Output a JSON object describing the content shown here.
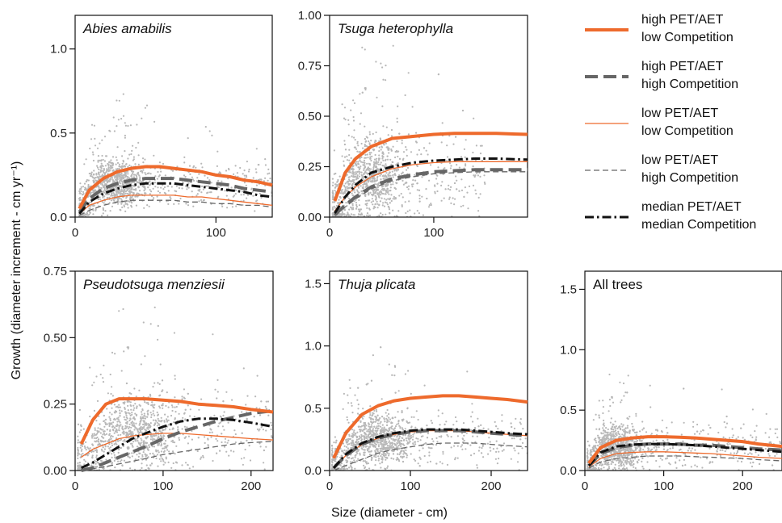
{
  "ylabel": "Growth (diameter increment - cm yr⁻¹)",
  "xlabel": "Size (diameter - cm)",
  "styles": {
    "high_low": {
      "color": "#ee6a2c",
      "width": 4,
      "dash": ""
    },
    "high_high": {
      "color": "#666666",
      "width": 4,
      "dash": "16,7"
    },
    "low_low": {
      "color": "#ee6a2c",
      "width": 1.3,
      "dash": ""
    },
    "low_high": {
      "color": "#666666",
      "width": 1.3,
      "dash": "7,4"
    },
    "median": {
      "color": "#111111",
      "width": 3,
      "dash": "11,4,2.5,4"
    },
    "scatter": "#b8b8b8"
  },
  "legend": [
    {
      "key": "high_low",
      "line1": "high PET/AET",
      "line2": "low Competition"
    },
    {
      "key": "high_high",
      "line1": "high PET/AET",
      "line2": "high Competition"
    },
    {
      "key": "low_low",
      "line1": "low PET/AET",
      "line2": "low Competition"
    },
    {
      "key": "low_high",
      "line1": "low PET/AET",
      "line2": "high Competition"
    },
    {
      "key": "median",
      "line1": "median PET/AET",
      "line2": "median Competition"
    }
  ],
  "chart_data": [
    {
      "type": "line",
      "title": "Abies amabilis",
      "italic": true,
      "xlim": [
        0,
        140
      ],
      "ylim": [
        0,
        1.2
      ],
      "xticks": [
        0,
        100
      ],
      "yticks": [
        0.0,
        0.5,
        1.0
      ],
      "ytick_labels": [
        "0.0",
        "0.5",
        "1.0"
      ],
      "scatter": {
        "xmax": 140,
        "mode": 28,
        "level": 0.2,
        "spread": 0.1
      },
      "x": [
        3,
        10,
        20,
        30,
        40,
        50,
        60,
        70,
        80,
        90,
        100,
        110,
        120,
        130,
        140
      ],
      "series": [
        {
          "key": "high_low",
          "values": [
            0.05,
            0.16,
            0.23,
            0.27,
            0.29,
            0.3,
            0.3,
            0.29,
            0.28,
            0.27,
            0.25,
            0.24,
            0.22,
            0.21,
            0.19
          ]
        },
        {
          "key": "high_high",
          "values": [
            0.03,
            0.11,
            0.17,
            0.2,
            0.22,
            0.23,
            0.23,
            0.23,
            0.22,
            0.21,
            0.2,
            0.19,
            0.17,
            0.16,
            0.15
          ]
        },
        {
          "key": "low_low",
          "values": [
            0.02,
            0.07,
            0.1,
            0.12,
            0.13,
            0.13,
            0.13,
            0.13,
            0.12,
            0.12,
            0.11,
            0.1,
            0.09,
            0.08,
            0.07
          ]
        },
        {
          "key": "low_high",
          "values": [
            0.01,
            0.04,
            0.07,
            0.09,
            0.1,
            0.1,
            0.1,
            0.1,
            0.09,
            0.09,
            0.08,
            0.08,
            0.07,
            0.07,
            0.06
          ]
        },
        {
          "key": "median",
          "values": [
            0.02,
            0.09,
            0.14,
            0.17,
            0.19,
            0.2,
            0.2,
            0.2,
            0.19,
            0.18,
            0.17,
            0.16,
            0.15,
            0.13,
            0.12
          ]
        }
      ]
    },
    {
      "type": "line",
      "title": "Tsuga heterophylla",
      "italic": true,
      "xlim": [
        0,
        190
      ],
      "ylim": [
        0,
        1.0
      ],
      "xticks": [
        0,
        100,
        200
      ],
      "yticks": [
        0.0,
        0.25,
        0.5,
        0.75,
        1.0
      ],
      "ytick_labels": [
        "0.00",
        "0.25",
        "0.50",
        "0.75",
        "1.00"
      ],
      "scatter": {
        "xmax": 150,
        "mode": 40,
        "level": 0.2,
        "spread": 0.14
      },
      "x": [
        5,
        15,
        25,
        40,
        60,
        80,
        100,
        120,
        140,
        160,
        190
      ],
      "series": [
        {
          "key": "high_low",
          "values": [
            0.08,
            0.22,
            0.29,
            0.35,
            0.39,
            0.4,
            0.41,
            0.415,
            0.415,
            0.415,
            0.41
          ]
        },
        {
          "key": "high_high",
          "values": [
            0.01,
            0.06,
            0.1,
            0.15,
            0.19,
            0.21,
            0.225,
            0.23,
            0.235,
            0.235,
            0.235
          ]
        },
        {
          "key": "low_low",
          "values": [
            0.03,
            0.1,
            0.15,
            0.2,
            0.24,
            0.26,
            0.27,
            0.275,
            0.275,
            0.275,
            0.275
          ]
        },
        {
          "key": "low_high",
          "values": [
            0.01,
            0.05,
            0.09,
            0.14,
            0.18,
            0.2,
            0.215,
            0.22,
            0.225,
            0.225,
            0.225
          ]
        },
        {
          "key": "median",
          "values": [
            0.02,
            0.1,
            0.16,
            0.22,
            0.25,
            0.27,
            0.28,
            0.285,
            0.29,
            0.29,
            0.285
          ]
        }
      ]
    },
    {
      "type": "line",
      "title": "Pseudotsuga menziesii",
      "italic": true,
      "xlim": [
        0,
        225
      ],
      "ylim": [
        0,
        0.75
      ],
      "xticks": [
        0,
        100,
        200
      ],
      "yticks": [
        0.0,
        0.25,
        0.5,
        0.75
      ],
      "ytick_labels": [
        "0.00",
        "0.25",
        "0.50",
        "0.75"
      ],
      "scatter": {
        "xmax": 225,
        "mode": 70,
        "level": 0.15,
        "spread": 0.1
      },
      "x": [
        7,
        20,
        35,
        50,
        65,
        80,
        100,
        120,
        140,
        160,
        180,
        200,
        225
      ],
      "series": [
        {
          "key": "high_low",
          "values": [
            0.1,
            0.19,
            0.25,
            0.27,
            0.27,
            0.27,
            0.265,
            0.26,
            0.25,
            0.245,
            0.24,
            0.23,
            0.22
          ]
        },
        {
          "key": "high_high",
          "values": [
            0.0,
            0.01,
            0.03,
            0.05,
            0.07,
            0.09,
            0.12,
            0.145,
            0.165,
            0.185,
            0.2,
            0.215,
            0.225
          ]
        },
        {
          "key": "low_low",
          "values": [
            0.05,
            0.08,
            0.1,
            0.12,
            0.13,
            0.135,
            0.14,
            0.14,
            0.135,
            0.13,
            0.125,
            0.12,
            0.115
          ]
        },
        {
          "key": "low_high",
          "values": [
            0.0,
            0.006,
            0.015,
            0.025,
            0.035,
            0.045,
            0.06,
            0.07,
            0.08,
            0.09,
            0.1,
            0.105,
            0.11
          ]
        },
        {
          "key": "median",
          "values": [
            0.01,
            0.03,
            0.06,
            0.09,
            0.12,
            0.14,
            0.165,
            0.185,
            0.195,
            0.195,
            0.19,
            0.18,
            0.165
          ]
        }
      ]
    },
    {
      "type": "line",
      "title": "Thuja plicata",
      "italic": true,
      "xlim": [
        0,
        245
      ],
      "ylim": [
        0,
        1.6
      ],
      "xticks": [
        0,
        100,
        200
      ],
      "yticks": [
        0.0,
        0.5,
        1.0,
        1.5
      ],
      "ytick_labels": [
        "0.0",
        "0.5",
        "1.0",
        "1.5"
      ],
      "scatter": {
        "xmax": 245,
        "mode": 60,
        "level": 0.25,
        "spread": 0.15
      },
      "x": [
        5,
        20,
        40,
        60,
        80,
        100,
        120,
        140,
        160,
        180,
        200,
        220,
        245
      ],
      "series": [
        {
          "key": "high_low",
          "values": [
            0.1,
            0.3,
            0.45,
            0.52,
            0.56,
            0.58,
            0.59,
            0.6,
            0.6,
            0.59,
            0.58,
            0.57,
            0.55
          ]
        },
        {
          "key": "high_high",
          "values": [
            0.02,
            0.12,
            0.21,
            0.26,
            0.29,
            0.31,
            0.32,
            0.32,
            0.32,
            0.31,
            0.3,
            0.29,
            0.28
          ]
        },
        {
          "key": "low_low",
          "values": [
            0.02,
            0.12,
            0.21,
            0.26,
            0.29,
            0.31,
            0.32,
            0.32,
            0.32,
            0.31,
            0.3,
            0.29,
            0.28
          ]
        },
        {
          "key": "low_high",
          "values": [
            0.0,
            0.04,
            0.09,
            0.14,
            0.17,
            0.19,
            0.21,
            0.22,
            0.22,
            0.22,
            0.21,
            0.2,
            0.19
          ]
        },
        {
          "key": "median",
          "values": [
            0.02,
            0.13,
            0.22,
            0.27,
            0.3,
            0.32,
            0.33,
            0.33,
            0.33,
            0.32,
            0.31,
            0.3,
            0.29
          ]
        }
      ]
    },
    {
      "type": "line",
      "title": "All trees",
      "italic": false,
      "xlim": [
        0,
        250
      ],
      "ylim": [
        0,
        1.65
      ],
      "xticks": [
        0,
        100,
        200
      ],
      "yticks": [
        0.0,
        0.5,
        1.0,
        1.5
      ],
      "ytick_labels": [
        "0.0",
        "0.5",
        "1.0",
        "1.5"
      ],
      "scatter": {
        "xmax": 250,
        "mode": 40,
        "level": 0.2,
        "spread": 0.13
      },
      "x": [
        5,
        20,
        40,
        60,
        80,
        100,
        120,
        140,
        160,
        180,
        200,
        220,
        250
      ],
      "series": [
        {
          "key": "high_low",
          "values": [
            0.06,
            0.19,
            0.25,
            0.27,
            0.28,
            0.28,
            0.275,
            0.27,
            0.26,
            0.25,
            0.24,
            0.22,
            0.2
          ]
        },
        {
          "key": "high_high",
          "values": [
            0.04,
            0.14,
            0.19,
            0.21,
            0.22,
            0.22,
            0.22,
            0.21,
            0.21,
            0.2,
            0.19,
            0.18,
            0.17
          ]
        },
        {
          "key": "low_low",
          "values": [
            0.03,
            0.1,
            0.14,
            0.15,
            0.155,
            0.155,
            0.15,
            0.145,
            0.14,
            0.13,
            0.12,
            0.11,
            0.1
          ]
        },
        {
          "key": "low_high",
          "values": [
            0.02,
            0.07,
            0.1,
            0.11,
            0.12,
            0.12,
            0.12,
            0.115,
            0.11,
            0.105,
            0.1,
            0.09,
            0.08
          ]
        },
        {
          "key": "median",
          "values": [
            0.04,
            0.15,
            0.2,
            0.215,
            0.22,
            0.22,
            0.215,
            0.21,
            0.2,
            0.19,
            0.18,
            0.17,
            0.155
          ]
        }
      ]
    }
  ]
}
